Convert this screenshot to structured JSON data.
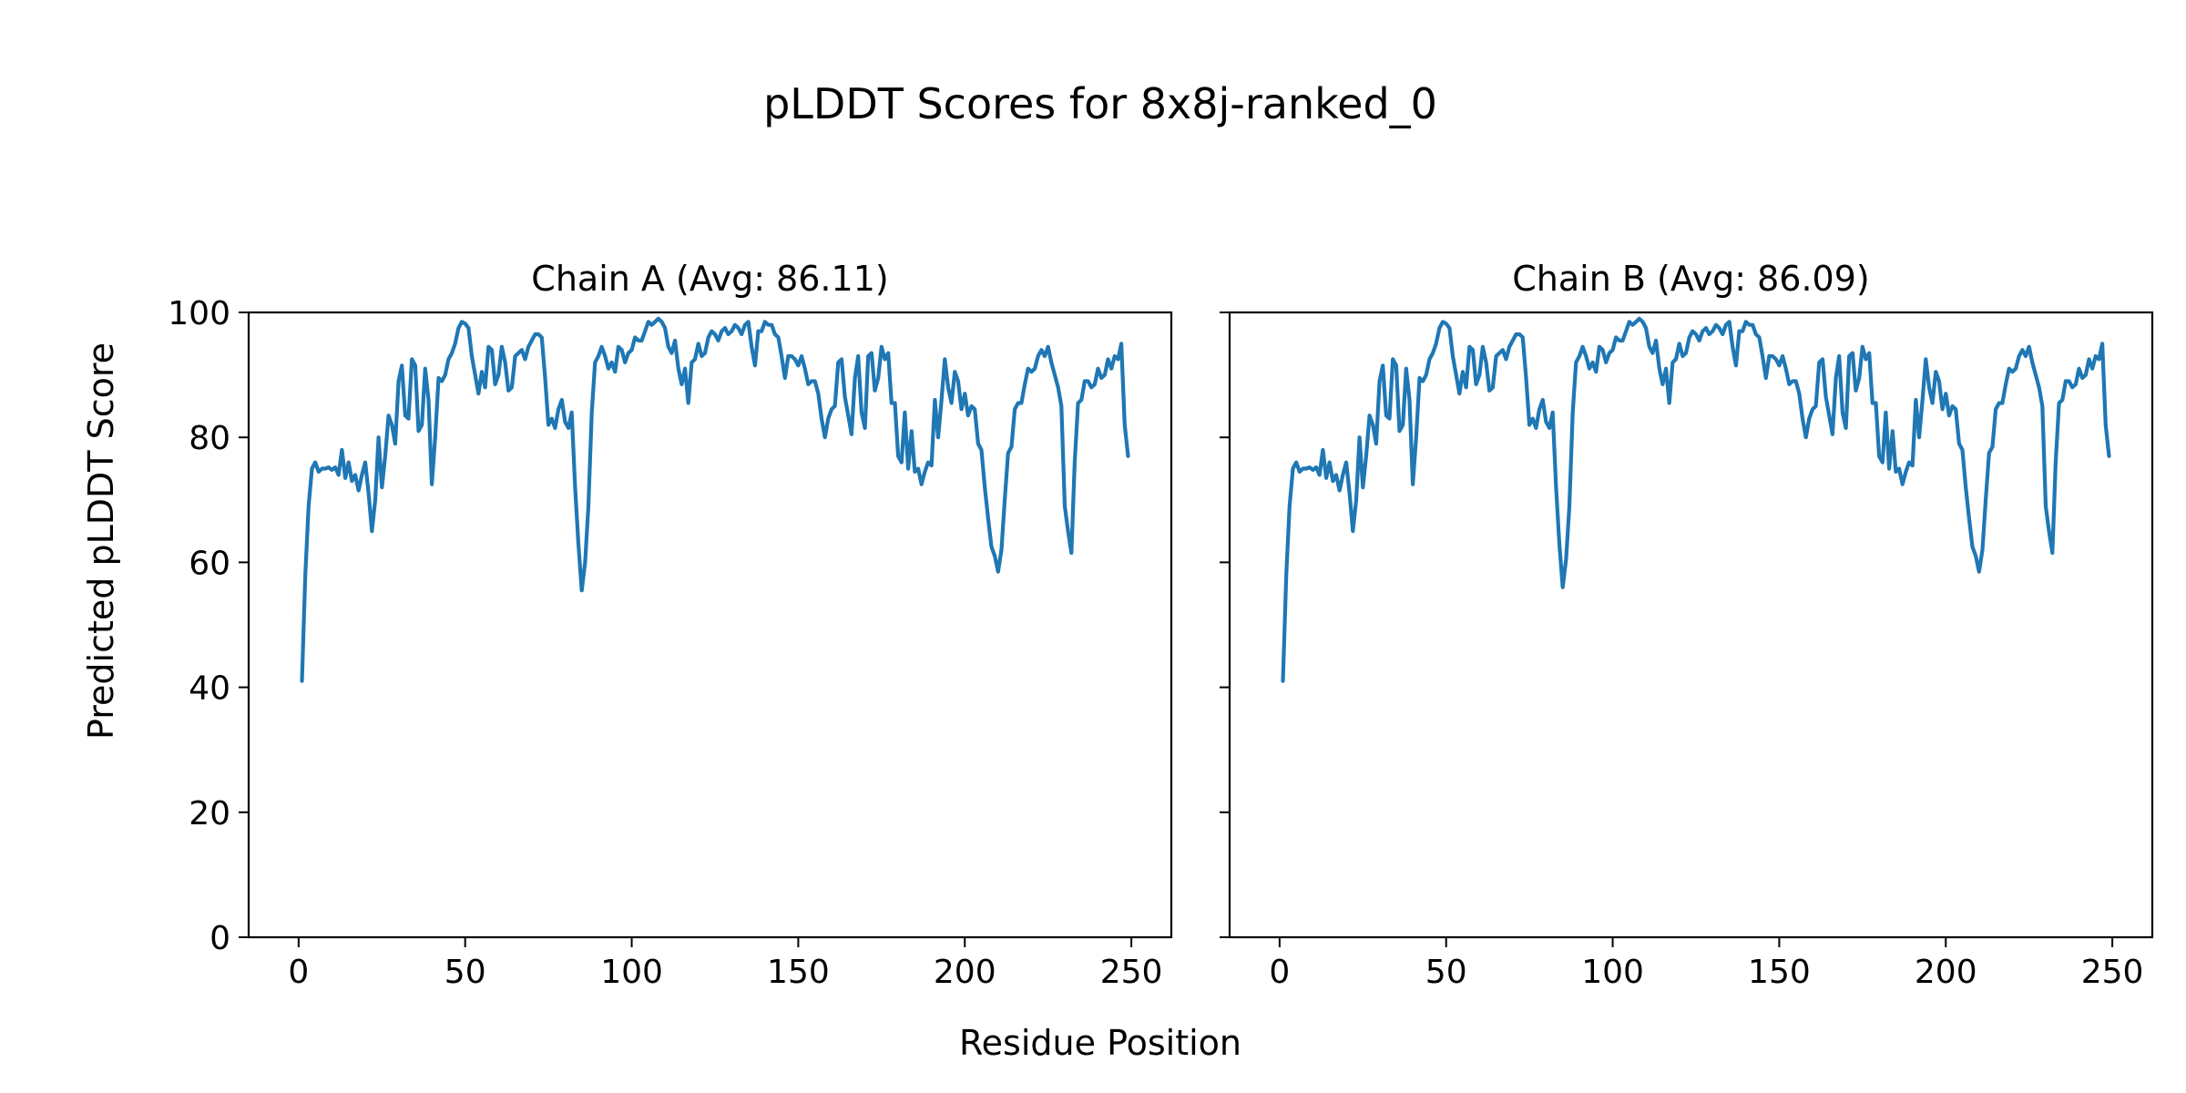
{
  "figure": {
    "title": "pLDDT Scores for 8x8j-ranked_0",
    "xlabel": "Residue Position",
    "ylabel": "Predicted pLDDT Score"
  },
  "colors": {
    "line": "#1f77b4",
    "axes": "#000000",
    "background": "#ffffff"
  },
  "chart_data": [
    {
      "type": "line",
      "title": "Chain A (Avg: 86.11)",
      "xlabel": "Residue Position",
      "ylabel": "Predicted pLDDT Score",
      "xlim": [
        -15,
        262
      ],
      "ylim": [
        0,
        100
      ],
      "xticks": [
        0,
        50,
        100,
        150,
        200,
        250
      ],
      "yticks": [
        0,
        20,
        40,
        60,
        80,
        100
      ],
      "grid": false,
      "series": [
        {
          "x": [
            1,
            2,
            3,
            4,
            5,
            6,
            7,
            8,
            9,
            10,
            11,
            12,
            13,
            14,
            15,
            16,
            17,
            18,
            19,
            20,
            21,
            22,
            23,
            24,
            25,
            26,
            27,
            28,
            29,
            30,
            31,
            32,
            33,
            34,
            35,
            36,
            37,
            38,
            39,
            40,
            41,
            42,
            43,
            44,
            45,
            46,
            47,
            48,
            49,
            50,
            51,
            52,
            53,
            54,
            55,
            56,
            57,
            58,
            59,
            60,
            61,
            62,
            63,
            64,
            65,
            66,
            67,
            68,
            69,
            70,
            71,
            72,
            73,
            74,
            75,
            76,
            77,
            78,
            79,
            80,
            81,
            82,
            83,
            84,
            85,
            86,
            87,
            88,
            89,
            90,
            91,
            92,
            93,
            94,
            95,
            96,
            97,
            98,
            99,
            100,
            101,
            102,
            103,
            104,
            105,
            106,
            107,
            108,
            109,
            110,
            111,
            112,
            113,
            114,
            115,
            116,
            117,
            118,
            119,
            120,
            121,
            122,
            123,
            124,
            125,
            126,
            127,
            128,
            129,
            130,
            131,
            132,
            133,
            134,
            135,
            136,
            137,
            138,
            139,
            140,
            141,
            142,
            143,
            144,
            145,
            146,
            147,
            148,
            149,
            150,
            151,
            152,
            153,
            154,
            155,
            156,
            157,
            158,
            159,
            160,
            161,
            162,
            163,
            164,
            165,
            166,
            167,
            168,
            169,
            170,
            171,
            172,
            173,
            174,
            175,
            176,
            177,
            178,
            179,
            180,
            181,
            182,
            183,
            184,
            185,
            186,
            187,
            188,
            189,
            190,
            191,
            192,
            193,
            194,
            195,
            196,
            197,
            198,
            199,
            200,
            201,
            202,
            203,
            204,
            205,
            206,
            207,
            208,
            209,
            210,
            211,
            212,
            213,
            214,
            215,
            216,
            217,
            218,
            219,
            220,
            221,
            222,
            223,
            224,
            225,
            226,
            227,
            228,
            229,
            230,
            231,
            232,
            233,
            234,
            235,
            236,
            237,
            238,
            239,
            240,
            241,
            242,
            243,
            244,
            245,
            246,
            247,
            248,
            249
          ],
          "y": [
            41,
            58,
            69,
            75,
            76,
            74.5,
            75,
            75,
            75.2,
            74.8,
            75.2,
            74,
            78,
            73.5,
            76,
            73,
            74,
            71.5,
            74,
            76,
            71,
            65,
            70,
            80,
            72,
            77,
            83.5,
            82,
            79,
            89,
            91.5,
            83.5,
            83,
            92.5,
            91.5,
            81,
            82,
            91,
            86,
            72.5,
            80,
            89.5,
            89,
            90,
            92.5,
            93.5,
            95,
            97.5,
            98.5,
            98.2,
            97.5,
            93,
            90,
            87,
            90.5,
            88,
            94.5,
            94,
            88.5,
            90,
            94.5,
            92,
            87.5,
            88,
            93,
            93.5,
            94,
            92.5,
            94.5,
            95.5,
            96.5,
            96.5,
            96,
            89.5,
            82,
            83,
            81.5,
            84.5,
            86,
            82.5,
            81.5,
            84,
            72,
            63,
            55.5,
            60,
            69,
            84,
            92,
            93,
            94.5,
            93,
            91,
            92,
            90.5,
            94.5,
            94,
            92,
            93.5,
            94,
            96,
            95.5,
            95.5,
            97,
            98.5,
            98,
            98.5,
            99,
            98.5,
            97.5,
            94.5,
            93.5,
            95.5,
            91,
            88.5,
            91,
            85.5,
            92,
            92.5,
            95,
            93,
            93.5,
            96,
            97,
            96.5,
            95.5,
            97,
            97.5,
            96.5,
            97,
            98,
            97.5,
            96.5,
            98,
            98.5,
            94.5,
            91.5,
            97,
            97,
            98.5,
            98,
            98,
            96.5,
            96,
            93,
            89.5,
            93,
            93,
            92.5,
            91.5,
            93,
            91,
            88.5,
            89,
            89,
            87,
            83,
            80,
            83,
            84.5,
            85,
            92,
            92.5,
            86.5,
            83.5,
            80.5,
            89.5,
            93,
            84,
            81.5,
            93,
            93.5,
            87.5,
            89.5,
            94.5,
            92.5,
            93.5,
            85.5,
            85.5,
            77,
            76,
            84,
            75,
            81,
            74.5,
            75,
            72.5,
            74.5,
            76,
            75.5,
            86,
            80,
            86,
            92.5,
            88,
            85.5,
            90.5,
            89,
            84.5,
            87,
            83.5,
            85,
            84.5,
            79,
            78,
            72,
            67,
            62.5,
            61,
            58.5,
            62,
            70,
            77.5,
            78.5,
            84.5,
            85.5,
            85.5,
            88.5,
            91,
            90.5,
            91,
            93,
            94,
            93,
            94.5,
            92,
            90,
            88,
            85,
            69,
            65,
            61.5,
            76,
            85.5,
            86,
            89,
            89,
            88,
            88.5,
            91,
            89.5,
            90,
            92.5,
            91,
            93,
            92.5,
            95,
            82,
            77
          ]
        }
      ]
    },
    {
      "type": "line",
      "title": "Chain B (Avg: 86.09)",
      "xlabel": "Residue Position",
      "ylabel": "",
      "xlim": [
        -15,
        262
      ],
      "ylim": [
        0,
        100
      ],
      "xticks": [
        0,
        50,
        100,
        150,
        200,
        250
      ],
      "yticks": [
        0,
        20,
        40,
        60,
        80,
        100
      ],
      "grid": false,
      "sharey": true,
      "series": [
        {
          "x": [
            1,
            2,
            3,
            4,
            5,
            6,
            7,
            8,
            9,
            10,
            11,
            12,
            13,
            14,
            15,
            16,
            17,
            18,
            19,
            20,
            21,
            22,
            23,
            24,
            25,
            26,
            27,
            28,
            29,
            30,
            31,
            32,
            33,
            34,
            35,
            36,
            37,
            38,
            39,
            40,
            41,
            42,
            43,
            44,
            45,
            46,
            47,
            48,
            49,
            50,
            51,
            52,
            53,
            54,
            55,
            56,
            57,
            58,
            59,
            60,
            61,
            62,
            63,
            64,
            65,
            66,
            67,
            68,
            69,
            70,
            71,
            72,
            73,
            74,
            75,
            76,
            77,
            78,
            79,
            80,
            81,
            82,
            83,
            84,
            85,
            86,
            87,
            88,
            89,
            90,
            91,
            92,
            93,
            94,
            95,
            96,
            97,
            98,
            99,
            100,
            101,
            102,
            103,
            104,
            105,
            106,
            107,
            108,
            109,
            110,
            111,
            112,
            113,
            114,
            115,
            116,
            117,
            118,
            119,
            120,
            121,
            122,
            123,
            124,
            125,
            126,
            127,
            128,
            129,
            130,
            131,
            132,
            133,
            134,
            135,
            136,
            137,
            138,
            139,
            140,
            141,
            142,
            143,
            144,
            145,
            146,
            147,
            148,
            149,
            150,
            151,
            152,
            153,
            154,
            155,
            156,
            157,
            158,
            159,
            160,
            161,
            162,
            163,
            164,
            165,
            166,
            167,
            168,
            169,
            170,
            171,
            172,
            173,
            174,
            175,
            176,
            177,
            178,
            179,
            180,
            181,
            182,
            183,
            184,
            185,
            186,
            187,
            188,
            189,
            190,
            191,
            192,
            193,
            194,
            195,
            196,
            197,
            198,
            199,
            200,
            201,
            202,
            203,
            204,
            205,
            206,
            207,
            208,
            209,
            210,
            211,
            212,
            213,
            214,
            215,
            216,
            217,
            218,
            219,
            220,
            221,
            222,
            223,
            224,
            225,
            226,
            227,
            228,
            229,
            230,
            231,
            232,
            233,
            234,
            235,
            236,
            237,
            238,
            239,
            240,
            241,
            242,
            243,
            244,
            245,
            246,
            247,
            248,
            249
          ],
          "y": [
            41,
            58,
            69,
            75,
            76,
            74.5,
            75,
            75,
            75.2,
            74.8,
            75.2,
            74,
            78,
            73.5,
            76,
            73,
            74,
            71.5,
            74,
            76,
            71,
            65,
            70,
            80,
            72,
            77,
            83.5,
            82,
            79,
            89,
            91.5,
            83.5,
            83,
            92.5,
            91.5,
            81,
            82,
            91,
            86,
            72.5,
            80,
            89.5,
            89,
            90,
            92.5,
            93.5,
            95,
            97.5,
            98.5,
            98.2,
            97.5,
            93,
            90,
            87,
            90.5,
            88,
            94.5,
            94,
            88.5,
            90,
            94.5,
            92,
            87.5,
            88,
            93,
            93.5,
            94,
            92.5,
            94.5,
            95.5,
            96.5,
            96.5,
            96,
            89.5,
            82,
            83,
            81.5,
            84.5,
            86,
            82.5,
            81.5,
            84,
            72,
            63,
            56,
            60.5,
            69,
            84,
            92,
            93,
            94.5,
            93,
            91,
            92,
            90.5,
            94.5,
            94,
            92,
            93.5,
            94,
            96,
            95.5,
            95.5,
            97,
            98.5,
            98,
            98.5,
            99,
            98.5,
            97.5,
            94.5,
            93.5,
            95.5,
            91,
            88.5,
            91,
            85.5,
            92,
            92.5,
            95,
            93,
            93.5,
            96,
            97,
            96.5,
            95.5,
            97,
            97.5,
            96.5,
            97,
            98,
            97.5,
            96.5,
            98,
            98.5,
            94.5,
            91.5,
            97,
            97,
            98.5,
            98,
            98,
            96.5,
            96,
            93,
            89.5,
            93,
            93,
            92.5,
            91.5,
            93,
            91,
            88.5,
            89,
            89,
            87,
            83,
            80,
            83,
            84.5,
            85,
            92,
            92.5,
            86.5,
            83.5,
            80.5,
            89.5,
            93,
            84,
            81.5,
            93,
            93.5,
            87.5,
            89.5,
            94.5,
            92.5,
            93.5,
            85.5,
            85.5,
            77,
            76,
            84,
            75,
            81,
            74.5,
            75,
            72.5,
            74.5,
            76,
            75.5,
            86,
            80,
            86,
            92.5,
            88,
            85.5,
            90.5,
            89,
            84.5,
            87,
            83.5,
            85,
            84.5,
            79,
            78,
            72,
            67,
            62.5,
            61,
            58.5,
            62,
            70,
            77.5,
            78.5,
            84.5,
            85.5,
            85.5,
            88.5,
            91,
            90.5,
            91,
            93,
            94,
            93,
            94.5,
            92,
            90,
            88,
            85,
            69,
            65,
            61.5,
            76,
            85.5,
            86,
            89,
            89,
            88,
            88.5,
            91,
            89.5,
            90,
            92.5,
            91,
            93,
            92.5,
            95,
            82,
            77
          ]
        }
      ]
    }
  ]
}
